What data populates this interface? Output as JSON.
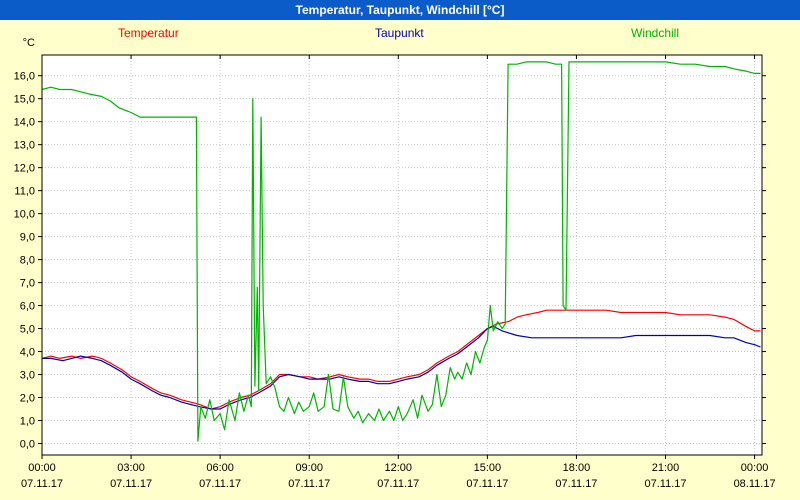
{
  "window": {
    "title": "Temperatur, Taupunkt, Windchill [°C]"
  },
  "colors": {
    "titlebar": "#0b5cc8",
    "titlebar_text": "#ffffff",
    "background": "#ffffcc",
    "plot_bg": "#ffffff",
    "grid": "#c6c6c6",
    "axis": "#000000"
  },
  "chart_data": {
    "type": "line",
    "title": "Temperatur, Taupunkt, Windchill [°C]",
    "xlabel": "",
    "ylabel": "°C",
    "ylim": [
      -0.5,
      16.9
    ],
    "xlim": [
      0,
      24.25
    ],
    "grid": true,
    "legend_position": "top",
    "yticks": [
      0,
      1,
      2,
      3,
      4,
      5,
      6,
      7,
      8,
      9,
      10,
      11,
      12,
      13,
      14,
      15,
      16
    ],
    "ytick_labels": [
      "0,0",
      "1,0",
      "2,0",
      "3,0",
      "4,0",
      "5,0",
      "6,0",
      "7,0",
      "8,0",
      "9,0",
      "10,0",
      "11,0",
      "12,0",
      "13,0",
      "14,0",
      "15,0",
      "16,0"
    ],
    "xticks": [
      0,
      3,
      6,
      9,
      12,
      15,
      18,
      21,
      24
    ],
    "xtick_labels": [
      {
        "time": "00:00",
        "date": "07.11.17"
      },
      {
        "time": "03:00",
        "date": "07.11.17"
      },
      {
        "time": "06:00",
        "date": "07.11.17"
      },
      {
        "time": "09:00",
        "date": "07.11.17"
      },
      {
        "time": "12:00",
        "date": "07.11.17"
      },
      {
        "time": "15:00",
        "date": "07.11.17"
      },
      {
        "time": "18:00",
        "date": "07.11.17"
      },
      {
        "time": "21:00",
        "date": "07.11.17"
      },
      {
        "time": "00:00",
        "date": "08.11.17"
      }
    ],
    "series": [
      {
        "name": "Temperatur",
        "color": "#ff0000",
        "points": [
          [
            0,
            3.7
          ],
          [
            0.3,
            3.8
          ],
          [
            0.6,
            3.7
          ],
          [
            1,
            3.8
          ],
          [
            1.3,
            3.7
          ],
          [
            1.7,
            3.8
          ],
          [
            2,
            3.7
          ],
          [
            2.3,
            3.5
          ],
          [
            2.7,
            3.2
          ],
          [
            3,
            2.9
          ],
          [
            3.3,
            2.7
          ],
          [
            3.7,
            2.4
          ],
          [
            4,
            2.2
          ],
          [
            4.3,
            2.1
          ],
          [
            4.7,
            1.9
          ],
          [
            5,
            1.8
          ],
          [
            5.3,
            1.7
          ],
          [
            5.7,
            1.5
          ],
          [
            6,
            1.6
          ],
          [
            6.3,
            1.8
          ],
          [
            6.7,
            2.0
          ],
          [
            7,
            2.1
          ],
          [
            7.3,
            2.3
          ],
          [
            7.7,
            2.6
          ],
          [
            8,
            3.0
          ],
          [
            8.3,
            3.0
          ],
          [
            8.7,
            2.9
          ],
          [
            9,
            2.9
          ],
          [
            9.3,
            2.8
          ],
          [
            9.7,
            2.9
          ],
          [
            10,
            3.0
          ],
          [
            10.3,
            2.9
          ],
          [
            10.7,
            2.8
          ],
          [
            11,
            2.8
          ],
          [
            11.3,
            2.7
          ],
          [
            11.7,
            2.7
          ],
          [
            12,
            2.8
          ],
          [
            12.3,
            2.9
          ],
          [
            12.7,
            3.0
          ],
          [
            13,
            3.2
          ],
          [
            13.3,
            3.5
          ],
          [
            13.7,
            3.8
          ],
          [
            14,
            4.0
          ],
          [
            14.3,
            4.3
          ],
          [
            14.7,
            4.7
          ],
          [
            15,
            5.0
          ],
          [
            15.3,
            5.2
          ],
          [
            15.7,
            5.3
          ],
          [
            16,
            5.5
          ],
          [
            16.3,
            5.6
          ],
          [
            16.7,
            5.7
          ],
          [
            17,
            5.8
          ],
          [
            17.5,
            5.8
          ],
          [
            18,
            5.8
          ],
          [
            18.5,
            5.8
          ],
          [
            19,
            5.8
          ],
          [
            19.5,
            5.7
          ],
          [
            20,
            5.7
          ],
          [
            20.5,
            5.7
          ],
          [
            21,
            5.7
          ],
          [
            21.5,
            5.6
          ],
          [
            22,
            5.6
          ],
          [
            22.5,
            5.6
          ],
          [
            23,
            5.5
          ],
          [
            23.3,
            5.4
          ],
          [
            23.7,
            5.1
          ],
          [
            24,
            4.9
          ],
          [
            24.2,
            4.9
          ]
        ]
      },
      {
        "name": "Taupunkt",
        "color": "#0000b4",
        "points": [
          [
            0,
            3.7
          ],
          [
            0.3,
            3.7
          ],
          [
            0.7,
            3.6
          ],
          [
            1,
            3.7
          ],
          [
            1.3,
            3.8
          ],
          [
            1.7,
            3.7
          ],
          [
            2,
            3.6
          ],
          [
            2.3,
            3.4
          ],
          [
            2.7,
            3.1
          ],
          [
            3,
            2.8
          ],
          [
            3.3,
            2.6
          ],
          [
            3.7,
            2.3
          ],
          [
            4,
            2.1
          ],
          [
            4.3,
            2.0
          ],
          [
            4.7,
            1.8
          ],
          [
            5,
            1.7
          ],
          [
            5.3,
            1.6
          ],
          [
            5.7,
            1.5
          ],
          [
            6,
            1.5
          ],
          [
            6.3,
            1.7
          ],
          [
            6.7,
            1.9
          ],
          [
            7,
            2.0
          ],
          [
            7.3,
            2.2
          ],
          [
            7.7,
            2.5
          ],
          [
            8,
            2.9
          ],
          [
            8.3,
            3.0
          ],
          [
            8.7,
            2.9
          ],
          [
            9,
            2.8
          ],
          [
            9.3,
            2.8
          ],
          [
            9.7,
            2.8
          ],
          [
            10,
            2.9
          ],
          [
            10.3,
            2.8
          ],
          [
            10.7,
            2.7
          ],
          [
            11,
            2.7
          ],
          [
            11.3,
            2.6
          ],
          [
            11.7,
            2.6
          ],
          [
            12,
            2.7
          ],
          [
            12.3,
            2.8
          ],
          [
            12.7,
            2.9
          ],
          [
            13,
            3.1
          ],
          [
            13.3,
            3.4
          ],
          [
            13.7,
            3.7
          ],
          [
            14,
            3.9
          ],
          [
            14.3,
            4.2
          ],
          [
            14.7,
            4.6
          ],
          [
            15,
            5.0
          ],
          [
            15.2,
            5.1
          ],
          [
            15.5,
            4.9
          ],
          [
            16,
            4.7
          ],
          [
            16.5,
            4.6
          ],
          [
            17,
            4.6
          ],
          [
            17.5,
            4.6
          ],
          [
            18,
            4.6
          ],
          [
            18.5,
            4.6
          ],
          [
            19,
            4.6
          ],
          [
            19.5,
            4.6
          ],
          [
            20,
            4.7
          ],
          [
            20.5,
            4.7
          ],
          [
            21,
            4.7
          ],
          [
            21.5,
            4.7
          ],
          [
            22,
            4.7
          ],
          [
            22.5,
            4.7
          ],
          [
            23,
            4.6
          ],
          [
            23.3,
            4.6
          ],
          [
            23.7,
            4.4
          ],
          [
            24,
            4.3
          ],
          [
            24.2,
            4.2
          ]
        ]
      },
      {
        "name": "Windchill",
        "color": "#00b400",
        "points": [
          [
            0,
            15.4
          ],
          [
            0.3,
            15.5
          ],
          [
            0.6,
            15.4
          ],
          [
            1,
            15.4
          ],
          [
            1.3,
            15.3
          ],
          [
            1.6,
            15.2
          ],
          [
            2,
            15.1
          ],
          [
            2.3,
            14.9
          ],
          [
            2.6,
            14.6
          ],
          [
            3,
            14.4
          ],
          [
            3.3,
            14.2
          ],
          [
            3.6,
            14.2
          ],
          [
            4,
            14.2
          ],
          [
            4.5,
            14.2
          ],
          [
            5,
            14.2
          ],
          [
            5.2,
            14.2
          ],
          [
            5.25,
            0.1
          ],
          [
            5.35,
            1.6
          ],
          [
            5.5,
            1.1
          ],
          [
            5.65,
            1.9
          ],
          [
            5.8,
            1.0
          ],
          [
            6,
            1.3
          ],
          [
            6.15,
            0.6
          ],
          [
            6.3,
            1.9
          ],
          [
            6.5,
            1.0
          ],
          [
            6.65,
            2.2
          ],
          [
            6.8,
            1.4
          ],
          [
            6.95,
            2.1
          ],
          [
            7.05,
            1.6
          ],
          [
            7.1,
            15.0
          ],
          [
            7.17,
            2.5
          ],
          [
            7.25,
            6.8
          ],
          [
            7.3,
            2.3
          ],
          [
            7.38,
            14.2
          ],
          [
            7.45,
            6.0
          ],
          [
            7.55,
            2.6
          ],
          [
            7.7,
            2.9
          ],
          [
            7.85,
            2.4
          ],
          [
            8,
            1.6
          ],
          [
            8.15,
            1.4
          ],
          [
            8.3,
            2.0
          ],
          [
            8.5,
            1.3
          ],
          [
            8.65,
            1.8
          ],
          [
            8.8,
            1.4
          ],
          [
            9,
            1.6
          ],
          [
            9.15,
            2.2
          ],
          [
            9.3,
            1.4
          ],
          [
            9.5,
            1.6
          ],
          [
            9.65,
            3.0
          ],
          [
            9.8,
            1.5
          ],
          [
            10,
            1.4
          ],
          [
            10.15,
            2.9
          ],
          [
            10.3,
            1.6
          ],
          [
            10.5,
            1.1
          ],
          [
            10.65,
            1.4
          ],
          [
            10.8,
            0.9
          ],
          [
            11,
            1.3
          ],
          [
            11.2,
            1.0
          ],
          [
            11.35,
            1.5
          ],
          [
            11.5,
            1.0
          ],
          [
            11.7,
            1.4
          ],
          [
            11.85,
            1.0
          ],
          [
            12,
            1.6
          ],
          [
            12.15,
            1.0
          ],
          [
            12.3,
            1.3
          ],
          [
            12.5,
            1.9
          ],
          [
            12.65,
            1.1
          ],
          [
            12.8,
            2.1
          ],
          [
            13,
            1.4
          ],
          [
            13.15,
            1.7
          ],
          [
            13.3,
            3.0
          ],
          [
            13.45,
            1.6
          ],
          [
            13.6,
            2.1
          ],
          [
            13.75,
            3.3
          ],
          [
            13.9,
            2.8
          ],
          [
            14,
            3.1
          ],
          [
            14.15,
            2.8
          ],
          [
            14.3,
            3.5
          ],
          [
            14.45,
            3.0
          ],
          [
            14.6,
            4.0
          ],
          [
            14.75,
            3.5
          ],
          [
            14.9,
            4.2
          ],
          [
            15,
            4.5
          ],
          [
            15.1,
            6.0
          ],
          [
            15.2,
            4.9
          ],
          [
            15.35,
            5.3
          ],
          [
            15.5,
            5.0
          ],
          [
            15.6,
            5.2
          ],
          [
            15.7,
            16.5
          ],
          [
            16,
            16.5
          ],
          [
            16.3,
            16.6
          ],
          [
            16.7,
            16.6
          ],
          [
            17,
            16.6
          ],
          [
            17.3,
            16.5
          ],
          [
            17.5,
            16.5
          ],
          [
            17.55,
            6.0
          ],
          [
            17.65,
            5.8
          ],
          [
            17.75,
            16.6
          ],
          [
            18,
            16.6
          ],
          [
            18.5,
            16.6
          ],
          [
            19,
            16.6
          ],
          [
            19.5,
            16.6
          ],
          [
            20,
            16.6
          ],
          [
            20.5,
            16.6
          ],
          [
            21,
            16.6
          ],
          [
            21.5,
            16.5
          ],
          [
            22,
            16.5
          ],
          [
            22.5,
            16.4
          ],
          [
            23,
            16.4
          ],
          [
            23.3,
            16.3
          ],
          [
            23.7,
            16.2
          ],
          [
            24,
            16.1
          ],
          [
            24.2,
            16.1
          ]
        ]
      }
    ]
  }
}
